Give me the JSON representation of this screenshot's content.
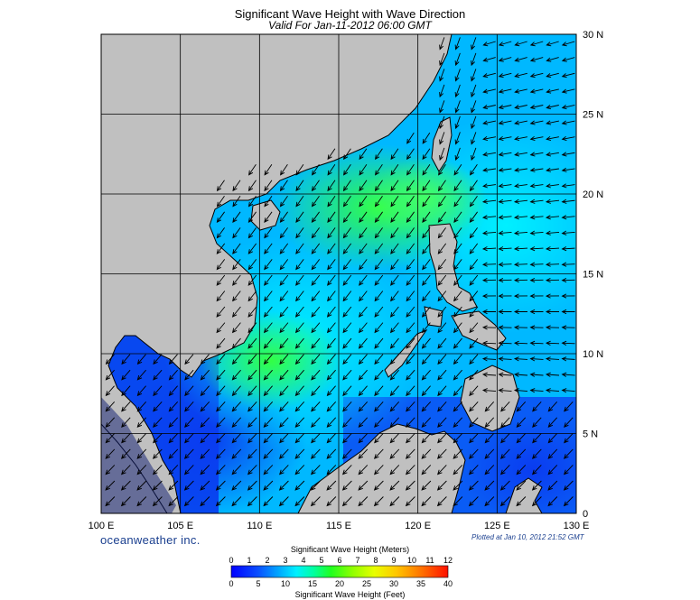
{
  "header": {
    "title": "Significant Wave Height with Wave Direction",
    "valid": "Valid For Jan-11-2012 06:00 GMT"
  },
  "map": {
    "lon_range": [
      100,
      130
    ],
    "lat_range": [
      0,
      30
    ],
    "lon_labels": [
      "100 E",
      "105 E",
      "110 E",
      "115 E",
      "120 E",
      "125 E",
      "130 E"
    ],
    "lat_labels": [
      "30 N",
      "25 N",
      "20 N",
      "15 N",
      "10 N",
      "5 N",
      "0"
    ],
    "grid": true,
    "land_color": "#c0c0c0"
  },
  "footer": {
    "brand": "oceanweather inc.",
    "plotted": "Plotted at Jan 10, 2012 21:52 GMT"
  },
  "colorbar": {
    "title_meters": "Significant Wave Height (Meters)",
    "title_feet": "Significant Wave Height (Feet)",
    "meter_ticks": [
      "0",
      "1",
      "2",
      "3",
      "4",
      "5",
      "6",
      "7",
      "8",
      "9",
      "10",
      "11",
      "12"
    ],
    "feet_ticks": [
      "0",
      "5",
      "10",
      "15",
      "20",
      "25",
      "30",
      "35",
      "40"
    ],
    "colors": [
      "#0000ff",
      "#1060ff",
      "#00b0ff",
      "#00f0ff",
      "#00ff90",
      "#40ff00",
      "#a0ff00",
      "#ffff00",
      "#ffb000",
      "#ff5000",
      "#ff0000"
    ]
  }
}
